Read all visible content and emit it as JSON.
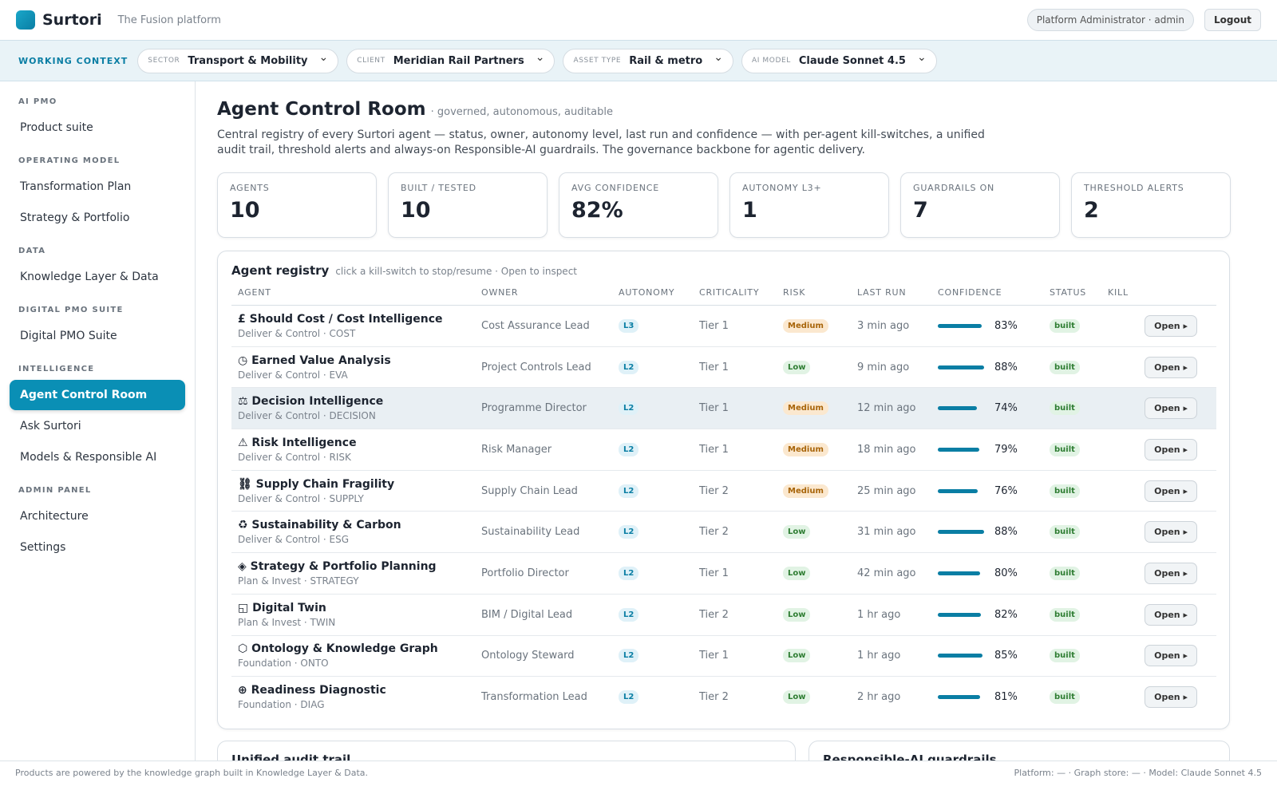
{
  "header": {
    "brand": "Surtori",
    "tagline": "The Fusion platform",
    "user": "Platform Administrator · admin",
    "logout": "Logout"
  },
  "context": {
    "label": "WORKING CONTEXT",
    "selectors": [
      {
        "label": "SECTOR",
        "value": "Transport & Mobility"
      },
      {
        "label": "CLIENT",
        "value": "Meridian Rail Partners"
      },
      {
        "label": "ASSET TYPE",
        "value": "Rail & metro"
      },
      {
        "label": "AI MODEL",
        "value": "Claude Sonnet 4.5"
      }
    ]
  },
  "sidebar": {
    "sections": [
      {
        "title": "AI PMO",
        "items": [
          "Product suite"
        ]
      },
      {
        "title": "OPERATING MODEL",
        "items": [
          "Transformation Plan",
          "Strategy & Portfolio"
        ]
      },
      {
        "title": "DATA",
        "items": [
          "Knowledge Layer & Data"
        ]
      },
      {
        "title": "DIGITAL PMO SUITE",
        "items": [
          "Digital PMO Suite"
        ]
      },
      {
        "title": "INTELLIGENCE",
        "items": [
          "Agent Control Room",
          "Ask Surtori",
          "Models & Responsible AI"
        ]
      },
      {
        "title": "ADMIN PANEL",
        "items": [
          "Architecture",
          "Settings"
        ]
      }
    ]
  },
  "page": {
    "title": "Agent Control Room",
    "subtitle": "· governed, autonomous, auditable",
    "description": "Central registry of every Surtori agent — status, owner, autonomy level, last run and confidence — with per-agent kill-switches, a unified audit trail, threshold alerts and always-on Responsible-AI guardrails. The governance backbone for agentic delivery."
  },
  "kpis": [
    {
      "label": "AGENTS",
      "value": "10"
    },
    {
      "label": "BUILT / TESTED",
      "value": "10"
    },
    {
      "label": "AVG CONFIDENCE",
      "value": "82%"
    },
    {
      "label": "AUTONOMY L3+",
      "value": "1"
    },
    {
      "label": "GUARDRAILS ON",
      "value": "7"
    },
    {
      "label": "THRESHOLD ALERTS",
      "value": "2"
    }
  ],
  "registry": {
    "title": "Agent registry",
    "hint": "click a kill-switch to stop/resume · Open to inspect",
    "columns": [
      "AGENT",
      "OWNER",
      "AUTONOMY",
      "CRITICALITY",
      "RISK",
      "LAST RUN",
      "CONFIDENCE",
      "STATUS",
      "KILL"
    ],
    "rows": [
      {
        "name": "£ Should Cost / Cost Intelligence",
        "group": "Deliver & Control · COST",
        "owner": "Cost Assurance Lead",
        "autonomy": "L3",
        "criticality": "Tier 1",
        "risk": "Medium",
        "last_run": "3 min ago",
        "confidence": "83%",
        "status": "built",
        "action": "Open ▸"
      },
      {
        "name": "◷ Earned Value Analysis",
        "group": "Deliver & Control · EVA",
        "owner": "Project Controls Lead",
        "autonomy": "L2",
        "criticality": "Tier 1",
        "risk": "Low",
        "last_run": "9 min ago",
        "confidence": "88%",
        "status": "built",
        "action": "Open ▸"
      },
      {
        "name": "⚖ Decision Intelligence",
        "group": "Deliver & Control · DECISION",
        "owner": "Programme Director",
        "autonomy": "L2",
        "criticality": "Tier 1",
        "risk": "Medium",
        "last_run": "12 min ago",
        "confidence": "74%",
        "status": "built",
        "action": "Open ▸"
      },
      {
        "name": "⚠ Risk Intelligence",
        "group": "Deliver & Control · RISK",
        "owner": "Risk Manager",
        "autonomy": "L2",
        "criticality": "Tier 1",
        "risk": "Medium",
        "last_run": "18 min ago",
        "confidence": "79%",
        "status": "built",
        "action": "Open ▸"
      },
      {
        "name": "⛓ Supply Chain Fragility",
        "group": "Deliver & Control · SUPPLY",
        "owner": "Supply Chain Lead",
        "autonomy": "L2",
        "criticality": "Tier 2",
        "risk": "Medium",
        "last_run": "25 min ago",
        "confidence": "76%",
        "status": "built",
        "action": "Open ▸"
      },
      {
        "name": "♻ Sustainability & Carbon",
        "group": "Deliver & Control · ESG",
        "owner": "Sustainability Lead",
        "autonomy": "L2",
        "criticality": "Tier 2",
        "risk": "Low",
        "last_run": "31 min ago",
        "confidence": "88%",
        "status": "built",
        "action": "Open ▸"
      },
      {
        "name": "◈ Strategy & Portfolio Planning",
        "group": "Plan & Invest · STRATEGY",
        "owner": "Portfolio Director",
        "autonomy": "L2",
        "criticality": "Tier 1",
        "risk": "Low",
        "last_run": "42 min ago",
        "confidence": "80%",
        "status": "built",
        "action": "Open ▸"
      },
      {
        "name": "◱ Digital Twin",
        "group": "Plan & Invest · TWIN",
        "owner": "BIM / Digital Lead",
        "autonomy": "L2",
        "criticality": "Tier 2",
        "risk": "Low",
        "last_run": "1 hr ago",
        "confidence": "82%",
        "status": "built",
        "action": "Open ▸"
      },
      {
        "name": "⬡ Ontology & Knowledge Graph",
        "group": "Foundation · ONTO",
        "owner": "Ontology Steward",
        "autonomy": "L2",
        "criticality": "Tier 1",
        "risk": "Low",
        "last_run": "1 hr ago",
        "confidence": "85%",
        "status": "built",
        "action": "Open ▸"
      },
      {
        "name": "⊕ Readiness Diagnostic",
        "group": "Foundation · DIAG",
        "owner": "Transformation Lead",
        "autonomy": "L2",
        "criticality": "Tier 2",
        "risk": "Low",
        "last_run": "2 hr ago",
        "confidence": "81%",
        "status": "built",
        "action": "Open ▸"
      }
    ]
  },
  "lower_cards": [
    "Unified audit trail",
    "Responsible-AI guardrails"
  ],
  "footer": {
    "left": "Products are powered by the knowledge graph built in Knowledge Layer & Data.",
    "right": "Platform: — · Graph store: — · Model: Claude Sonnet 4.5"
  }
}
